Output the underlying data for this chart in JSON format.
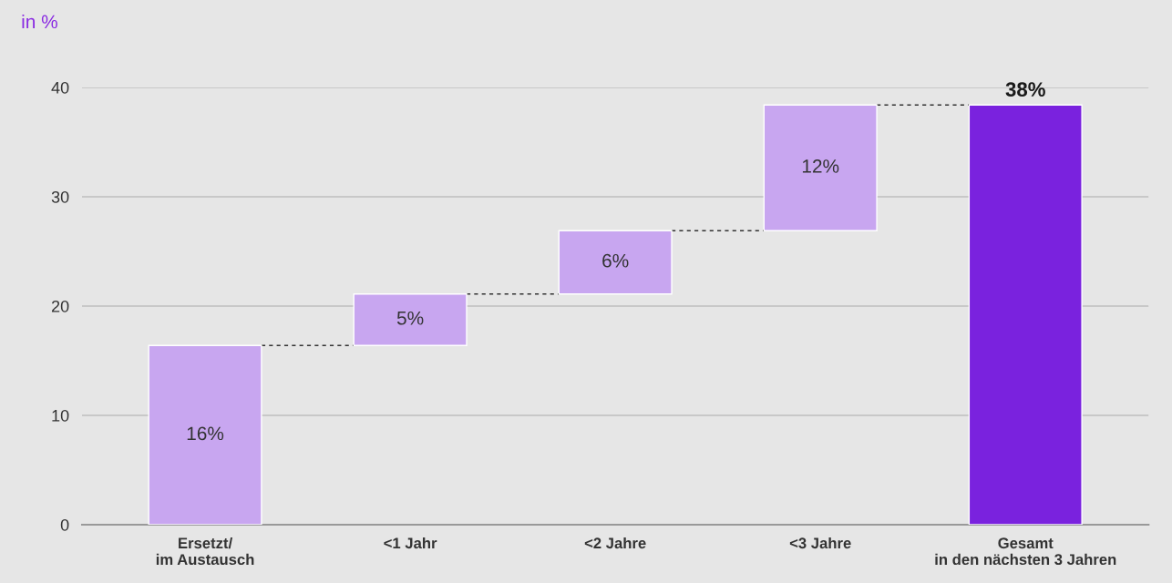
{
  "chart_data": {
    "type": "bar",
    "ylabel": "in %",
    "categories": [
      "Ersetzt/\nim Austausch",
      "<1 Jahr",
      "<2 Jahre",
      "<3 Jahre",
      "Gesamt\nin den nächsten 3 Jahren"
    ],
    "values": [
      16.4,
      4.7,
      5.8,
      11.5,
      38.4
    ],
    "base": [
      0,
      16.4,
      21.1,
      26.9,
      0
    ],
    "colors": [
      "#c8a6f0",
      "#c8a6f0",
      "#c8a6f0",
      "#c8a6f0",
      "#7a22de"
    ],
    "value_labels": [
      "16%",
      "5%",
      "6%",
      "12%",
      "38%"
    ],
    "ylim": [
      0,
      40
    ],
    "yticks": [
      0,
      10,
      20,
      30,
      40
    ],
    "grid": "y"
  }
}
